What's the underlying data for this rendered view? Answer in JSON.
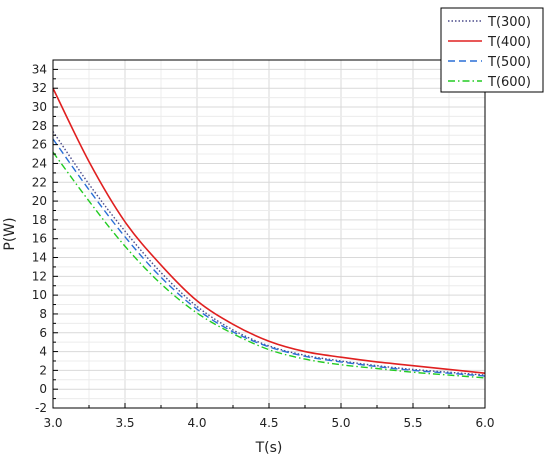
{
  "chart_data": {
    "type": "line",
    "xlabel": "T(s)",
    "ylabel": "P(W)",
    "xlim": [
      3.0,
      6.0
    ],
    "ylim": [
      -2,
      35
    ],
    "xticks": [
      3.0,
      3.5,
      4.0,
      4.5,
      5.0,
      5.5,
      6.0
    ],
    "xtick_labels": [
      "3.0",
      "3.5",
      "4.0",
      "4.5",
      "5.0",
      "5.5",
      "6.0"
    ],
    "yticks": [
      -2,
      0,
      2,
      4,
      6,
      8,
      10,
      12,
      14,
      16,
      18,
      20,
      22,
      24,
      26,
      28,
      30,
      32,
      34
    ],
    "ytick_labels": [
      "-2",
      "0",
      "2",
      "4",
      "6",
      "8",
      "10",
      "12",
      "14",
      "16",
      "18",
      "20",
      "22",
      "24",
      "26",
      "28",
      "30",
      "32",
      "34"
    ],
    "grid": true,
    "legend_position": "top-right",
    "series": [
      {
        "name": "T(300)",
        "color": "#4a4a8a",
        "dash": "dotted",
        "x": [
          3.0,
          3.25,
          3.5,
          3.75,
          4.0,
          4.25,
          4.5,
          4.75,
          5.0,
          5.25,
          5.5,
          5.75,
          6.0
        ],
        "y": [
          27.4,
          21.8,
          16.8,
          12.4,
          8.8,
          6.3,
          4.6,
          3.6,
          3.0,
          2.5,
          2.1,
          1.8,
          1.5
        ]
      },
      {
        "name": "T(400)",
        "color": "#e02020",
        "dash": "solid",
        "x": [
          3.0,
          3.25,
          3.5,
          3.75,
          4.0,
          4.25,
          4.5,
          4.75,
          5.0,
          5.25,
          5.5,
          5.75,
          6.0
        ],
        "y": [
          32.0,
          24.2,
          17.8,
          13.2,
          9.4,
          6.9,
          5.1,
          4.0,
          3.4,
          2.9,
          2.5,
          2.1,
          1.7
        ]
      },
      {
        "name": "T(500)",
        "color": "#2a6fd6",
        "dash": "dashed",
        "x": [
          3.0,
          3.25,
          3.5,
          3.75,
          4.0,
          4.25,
          4.5,
          4.75,
          5.0,
          5.25,
          5.5,
          5.75,
          6.0
        ],
        "y": [
          26.6,
          21.2,
          16.2,
          11.9,
          8.5,
          6.1,
          4.5,
          3.5,
          2.9,
          2.4,
          2.0,
          1.7,
          1.4
        ]
      },
      {
        "name": "T(600)",
        "color": "#22cc22",
        "dash": "dashdot",
        "x": [
          3.0,
          3.25,
          3.5,
          3.75,
          4.0,
          4.25,
          4.5,
          4.75,
          5.0,
          5.25,
          5.5,
          5.75,
          6.0
        ],
        "y": [
          25.2,
          20.0,
          15.2,
          11.2,
          8.1,
          5.9,
          4.2,
          3.2,
          2.6,
          2.2,
          1.8,
          1.5,
          1.2
        ]
      }
    ]
  }
}
